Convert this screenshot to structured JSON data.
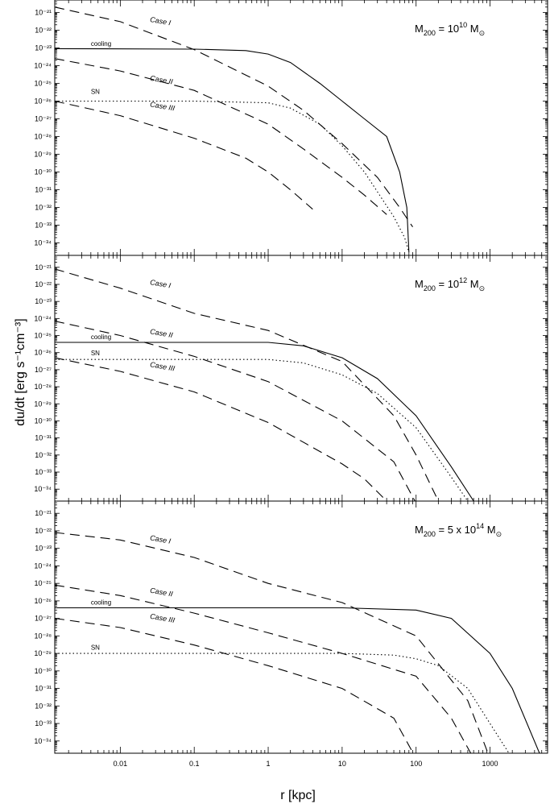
{
  "figure": {
    "ylabel": "du/dt [erg s⁻¹cm⁻³]",
    "xlabel": "r [kpc]"
  },
  "chart_data": [
    {
      "type": "line",
      "panel_label": {
        "base": "M",
        "sub": "200",
        "mid": " = 10",
        "sup": "10",
        "unit": " M",
        "unit_sub": "⊙"
      },
      "xscale": "log",
      "yscale": "log",
      "xlim": [
        0.0013,
        6000
      ],
      "ylim": [
        2e-35,
        5e-21
      ],
      "grid": false,
      "series": [
        {
          "name": "Case I",
          "style": "dashed",
          "x": [
            0.0013,
            0.01,
            0.1,
            1,
            3,
            10,
            30,
            60,
            90
          ],
          "y": [
            2e-21,
            3e-22,
            8e-24,
            7e-26,
            3e-27,
            4e-29,
            5e-31,
            1e-32,
            8e-34
          ]
        },
        {
          "name": "Case II",
          "style": "dashed",
          "x": [
            0.0013,
            0.01,
            0.1,
            1,
            3,
            10,
            20,
            40
          ],
          "y": [
            2.5e-24,
            5e-25,
            4e-26,
            5e-28,
            2e-29,
            5e-31,
            5e-32,
            4e-33
          ]
        },
        {
          "name": "Case III",
          "style": "dashed",
          "x": [
            0.0013,
            0.01,
            0.1,
            0.5,
            1,
            2,
            4
          ],
          "y": [
            1e-26,
            1.5e-27,
            8e-29,
            6e-30,
            1e-30,
            1e-31,
            8e-33
          ]
        },
        {
          "name": "cooling",
          "style": "solid",
          "x": [
            0.0013,
            0.1,
            0.5,
            1,
            2,
            5,
            10,
            20,
            40,
            60,
            75,
            80
          ],
          "y": [
            9e-24,
            8.5e-24,
            7e-24,
            4.5e-24,
            1.5e-24,
            1e-25,
            1e-26,
            1e-27,
            1e-28,
            1e-30,
            1e-32,
            3e-35
          ]
        },
        {
          "name": "SN",
          "style": "dotted",
          "x": [
            0.0013,
            0.1,
            1,
            2,
            5,
            10,
            20,
            50,
            70,
            80
          ],
          "y": [
            1e-26,
            1e-26,
            8e-27,
            4e-27,
            5e-28,
            3e-29,
            1e-30,
            3e-33,
            2e-34,
            3e-35
          ]
        }
      ],
      "annotations": [
        {
          "text": "Case I",
          "x": 0.025,
          "y": 3e-22
        },
        {
          "text": "cooling",
          "x": 0.004,
          "y": 1.3e-23
        },
        {
          "text": "Case II",
          "x": 0.025,
          "y": 1.5e-25
        },
        {
          "text": "SN",
          "x": 0.004,
          "y": 2.5e-26
        },
        {
          "text": "Case III",
          "x": 0.025,
          "y": 5e-27
        }
      ],
      "ytick_exponents": [
        -21,
        -22,
        -23,
        -24,
        -25,
        -26,
        -27,
        -28,
        -29,
        -30,
        -31,
        -32,
        -33,
        -34
      ],
      "xtick_labels": []
    },
    {
      "type": "line",
      "panel_label": {
        "base": "M",
        "sub": "200",
        "mid": " = 10",
        "sup": "12",
        "unit": " M",
        "unit_sub": "⊙"
      },
      "xscale": "log",
      "yscale": "log",
      "xlim": [
        0.0013,
        6000
      ],
      "ylim": [
        2e-35,
        5e-21
      ],
      "grid": false,
      "series": [
        {
          "name": "Case I",
          "style": "dashed",
          "x": [
            0.0013,
            0.01,
            0.1,
            1,
            10,
            50,
            100,
            200
          ],
          "y": [
            8e-22,
            6e-23,
            2e-24,
            2e-25,
            3e-27,
            2e-30,
            1e-32,
            2e-35
          ]
        },
        {
          "name": "Case II",
          "style": "dashed",
          "x": [
            0.0013,
            0.01,
            0.1,
            1,
            10,
            50,
            100
          ],
          "y": [
            7e-25,
            1e-25,
            6e-27,
            2e-28,
            1e-30,
            4e-33,
            1.5e-35
          ]
        },
        {
          "name": "Case III",
          "style": "dashed",
          "x": [
            0.0013,
            0.01,
            0.1,
            1,
            10,
            20,
            40
          ],
          "y": [
            5e-27,
            8e-28,
            5e-29,
            8e-31,
            3e-33,
            4e-34,
            2e-35
          ]
        },
        {
          "name": "cooling",
          "style": "solid",
          "x": [
            0.0013,
            1,
            3,
            10,
            30,
            100,
            300,
            600
          ],
          "y": [
            4e-26,
            4e-26,
            2.5e-26,
            5e-27,
            3e-28,
            2e-30,
            2e-33,
            2e-35
          ]
        },
        {
          "name": "SN",
          "style": "dotted",
          "x": [
            0.0013,
            1,
            3,
            10,
            30,
            100,
            300,
            500
          ],
          "y": [
            4e-27,
            4e-27,
            2.5e-27,
            5e-28,
            4e-29,
            4e-31,
            5e-34,
            2e-35
          ]
        }
      ],
      "annotations": [
        {
          "text": "Case I",
          "x": 0.025,
          "y": 1e-22
        },
        {
          "text": "Case II",
          "x": 0.025,
          "y": 1.3e-25
        },
        {
          "text": "cooling",
          "x": 0.004,
          "y": 6e-26
        },
        {
          "text": "SN",
          "x": 0.004,
          "y": 7e-27
        },
        {
          "text": "Case III",
          "x": 0.025,
          "y": 1.5e-27
        }
      ],
      "ytick_exponents": [
        -21,
        -22,
        -23,
        -24,
        -25,
        -26,
        -27,
        -28,
        -29,
        -30,
        -31,
        -32,
        -33,
        -34
      ],
      "xtick_labels": []
    },
    {
      "type": "line",
      "panel_label": {
        "base": "M",
        "sub": "200",
        "mid": " = 5 x 10",
        "sup": "14",
        "unit": " M",
        "unit_sub": "⊙"
      },
      "xscale": "log",
      "yscale": "log",
      "xlim": [
        0.0013,
        6000
      ],
      "ylim": [
        2e-35,
        5e-21
      ],
      "grid": false,
      "series": [
        {
          "name": "Case I",
          "style": "dashed",
          "x": [
            0.0013,
            0.01,
            0.1,
            1,
            10,
            100,
            500,
            1000
          ],
          "y": [
            8e-23,
            3e-23,
            3e-24,
            1e-25,
            8e-27,
            1e-28,
            2e-32,
            1e-35
          ]
        },
        {
          "name": "Case II",
          "style": "dashed",
          "x": [
            0.0013,
            0.01,
            0.1,
            1,
            10,
            100,
            300,
            600
          ],
          "y": [
            8e-26,
            2e-26,
            2e-27,
            1.5e-28,
            1e-29,
            5e-31,
            2e-33,
            1e-35
          ]
        },
        {
          "name": "Case III",
          "style": "dashed",
          "x": [
            0.0013,
            0.01,
            0.1,
            1,
            10,
            50,
            100
          ],
          "y": [
            1e-27,
            3e-28,
            3e-29,
            2e-30,
            1e-31,
            2e-33,
            1e-35
          ]
        },
        {
          "name": "cooling",
          "style": "solid",
          "x": [
            0.0013,
            10,
            100,
            300,
            1000,
            2000,
            5000
          ],
          "y": [
            4e-27,
            4e-27,
            3e-27,
            1e-27,
            1e-29,
            1e-31,
            1e-35
          ]
        },
        {
          "name": "SN",
          "style": "dotted",
          "x": [
            0.0013,
            10,
            50,
            100,
            200,
            500,
            1000,
            2000
          ],
          "y": [
            1e-29,
            1e-29,
            8e-30,
            5e-30,
            2e-30,
            1e-31,
            1e-33,
            1e-35
          ]
        }
      ],
      "annotations": [
        {
          "text": "Case I",
          "x": 0.025,
          "y": 3e-23
        },
        {
          "text": "Case II",
          "x": 0.025,
          "y": 3e-26
        },
        {
          "text": "cooling",
          "x": 0.004,
          "y": 6e-27
        },
        {
          "text": "Case III",
          "x": 0.025,
          "y": 1e-27
        },
        {
          "text": "SN",
          "x": 0.004,
          "y": 1.6e-29
        }
      ],
      "ytick_exponents": [
        -21,
        -22,
        -23,
        -24,
        -25,
        -26,
        -27,
        -28,
        -29,
        -30,
        -31,
        -32,
        -33,
        -34
      ],
      "xtick_labels": [
        "0.01",
        "0.1",
        "1",
        "10",
        "100",
        "1000"
      ]
    }
  ]
}
